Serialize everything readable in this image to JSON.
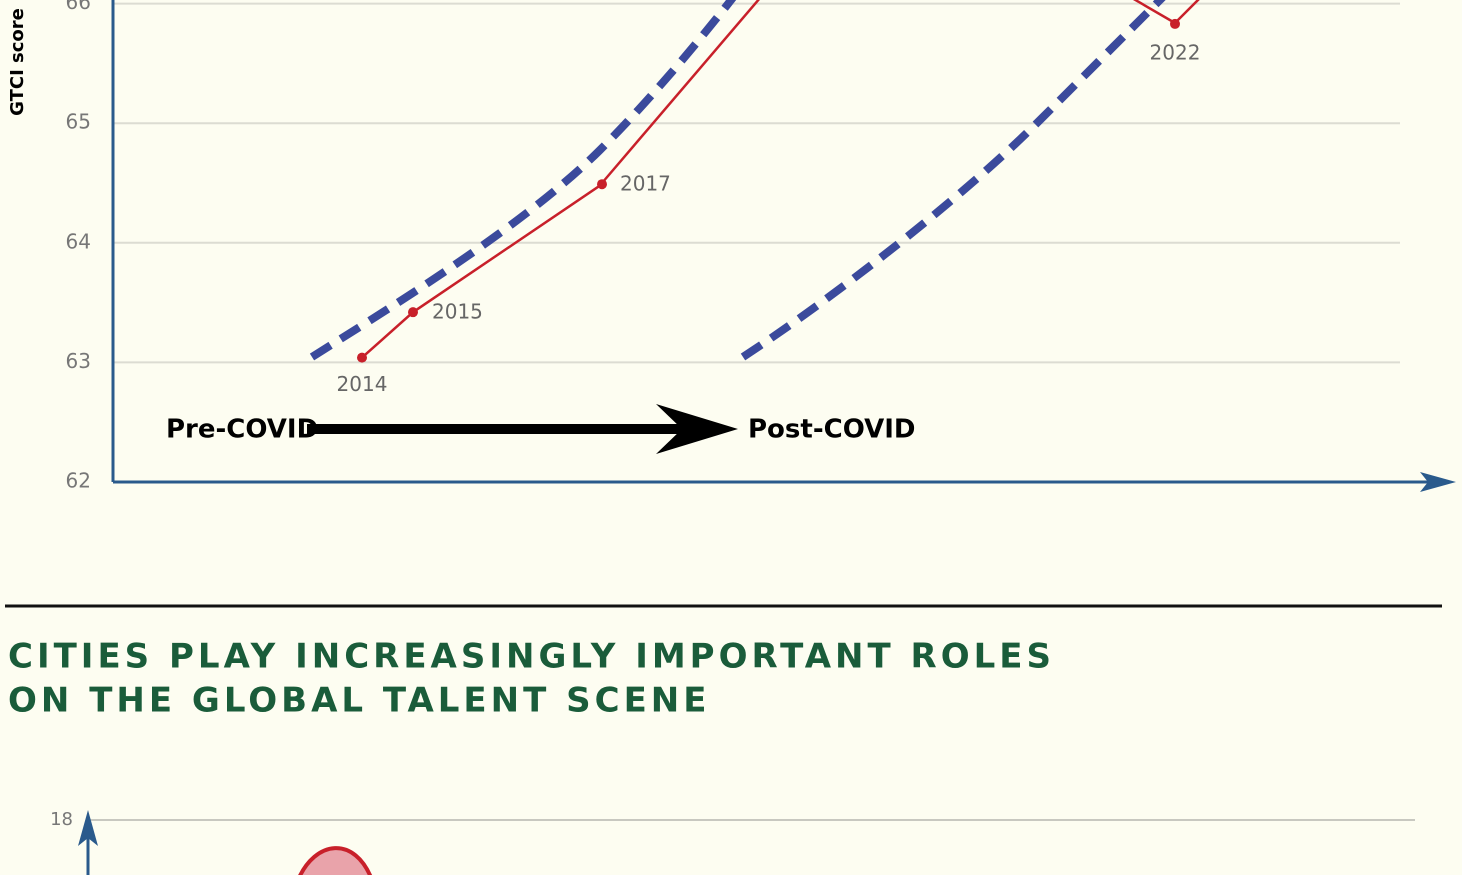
{
  "chart_data": [
    {
      "type": "line",
      "y_label": "GTCI score",
      "categories": [
        "2014",
        "2015",
        "2017",
        "2022"
      ],
      "values": [
        63.04,
        63.42,
        64.49,
        65.83
      ],
      "color": "#c8202a",
      "trend_color": "#3b4a9c",
      "ylim": [
        62,
        66.03
      ],
      "yticks": [
        62,
        63,
        64,
        65,
        66
      ],
      "grid": true,
      "annotations": [
        "Pre-COVID",
        "Post-COVID"
      ]
    },
    {
      "type": "area",
      "color": "#c8202a",
      "yticks": [
        18
      ],
      "grid": true
    }
  ],
  "heading": [
    "CITIES PLAY INCREASINGLY IMPORTANT ROLES",
    "ON THE GLOBAL TALENT SCENE"
  ]
}
